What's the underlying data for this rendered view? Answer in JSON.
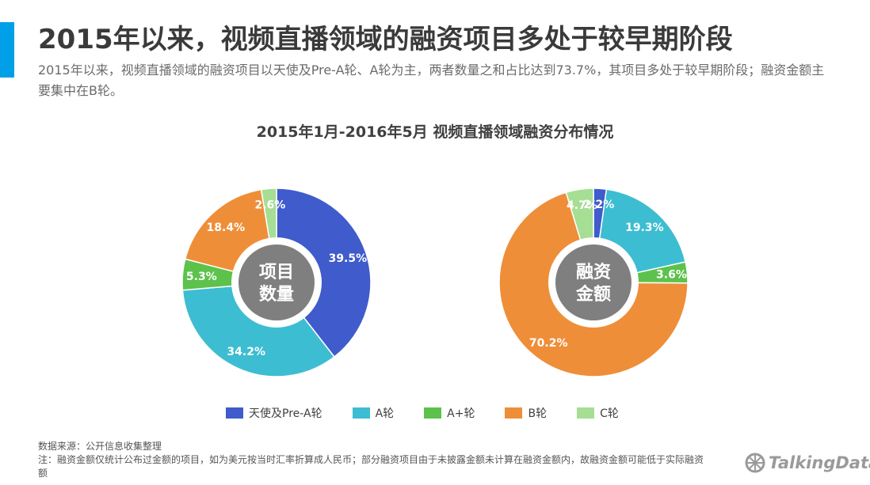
{
  "page": {
    "title": "2015年以来，视频直播领域的融资项目多处于较早期阶段",
    "subtitle": "2015年以来，视频直播领域的融资项目以天使及Pre-A轮、A轮为主，两者数量之和占比达到73.7%，其项目多处于较早期阶段；融资金额主要集中在B轮。",
    "footnote_source": "数据来源：公开信息收集整理",
    "footnote_note": "注：融资金额仅统计公布过金额的项目，如为美元按当时汇率折算成人民币；部分融资项目由于未披露金额未计算在融资金额内，故融资金额可能低于实际融资额",
    "logo_text": "TalkingData",
    "accent_color": "#00a0e9"
  },
  "chart_data": {
    "title": "2015年1月-2016年5月  视频直播领域融资分布情况",
    "type": "pie",
    "categories": [
      "天使及Pre-A轮",
      "A轮",
      "A+轮",
      "B轮",
      "C轮"
    ],
    "colors": [
      "#3f5bcc",
      "#3dbdd1",
      "#5cc24c",
      "#ef8e39",
      "#a6de94"
    ],
    "legend_position": "bottom",
    "charts": [
      {
        "center_label": [
          "项目",
          "数量"
        ],
        "values": [
          39.5,
          34.2,
          5.3,
          18.4,
          2.6
        ],
        "labels": [
          "39.5%",
          "34.2%",
          "5.3%",
          "18.4%",
          "2.6%"
        ]
      },
      {
        "center_label": [
          "融资",
          "金额"
        ],
        "values": [
          2.2,
          19.3,
          3.6,
          70.2,
          4.7
        ],
        "labels": [
          "2.2%",
          "19.3%",
          "3.6%",
          "70.2%",
          "4.7%"
        ]
      }
    ]
  }
}
